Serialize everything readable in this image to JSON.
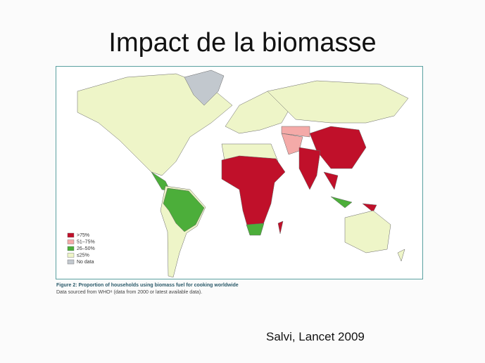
{
  "title": "Impact de la biomasse",
  "legend": [
    {
      "label": ">75%",
      "color": "#c0102a"
    },
    {
      "label": "51–75%",
      "color": "#f4aaa8"
    },
    {
      "label": "26–50%",
      "color": "#4cae3a"
    },
    {
      "label": "≤25%",
      "color": "#eef5c8"
    },
    {
      "label": "No data",
      "color": "#c2c8ce"
    }
  ],
  "figure": {
    "caption": "Figure 2: Proportion of households using biomass fuel for cooking worldwide",
    "source": "Data sourced from WHO⁸ (data from 2000 or latest available data)."
  },
  "citation": "Salvi, Lancet 2009"
}
